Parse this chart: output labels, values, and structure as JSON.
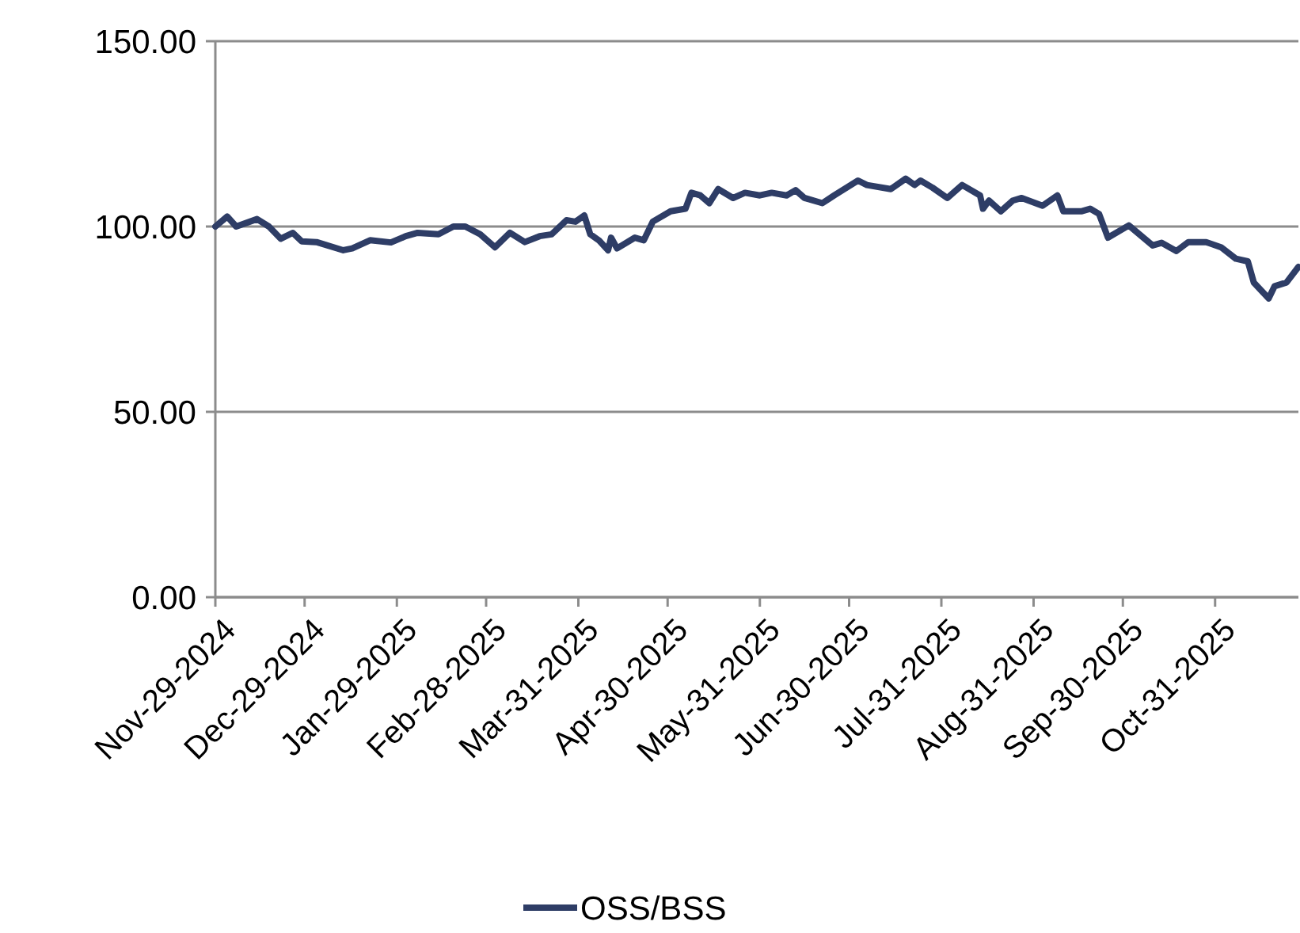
{
  "chart_data": {
    "type": "line",
    "x": [
      "2024-11-29",
      "2024-12-03",
      "2024-12-06",
      "2024-12-13",
      "2024-12-17",
      "2024-12-21",
      "2024-12-25",
      "2024-12-28",
      "2025-01-02",
      "2025-01-11",
      "2025-01-14",
      "2025-01-20",
      "2025-01-27",
      "2025-02-01",
      "2025-02-05",
      "2025-02-12",
      "2025-02-17",
      "2025-02-21",
      "2025-02-26",
      "2025-03-03",
      "2025-03-08",
      "2025-03-13",
      "2025-03-18",
      "2025-03-22",
      "2025-03-27",
      "2025-03-30",
      "2025-04-02",
      "2025-04-04",
      "2025-04-07",
      "2025-04-10",
      "2025-04-11",
      "2025-04-13",
      "2025-04-19",
      "2025-04-22",
      "2025-04-25",
      "2025-05-01",
      "2025-05-06",
      "2025-05-08",
      "2025-05-11",
      "2025-05-14",
      "2025-05-17",
      "2025-05-22",
      "2025-05-26",
      "2025-05-31",
      "2025-06-04",
      "2025-06-09",
      "2025-06-12",
      "2025-06-15",
      "2025-06-21",
      "2025-06-25",
      "2025-07-03",
      "2025-07-06",
      "2025-07-14",
      "2025-07-19",
      "2025-07-22",
      "2025-07-24",
      "2025-07-28",
      "2025-08-02",
      "2025-08-07",
      "2025-08-13",
      "2025-08-14",
      "2025-08-16",
      "2025-08-20",
      "2025-08-24",
      "2025-08-27",
      "2025-09-03",
      "2025-09-08",
      "2025-09-10",
      "2025-09-16",
      "2025-09-19",
      "2025-09-22",
      "2025-09-25",
      "2025-10-02",
      "2025-10-10",
      "2025-10-13",
      "2025-10-18",
      "2025-10-22",
      "2025-10-28",
      "2025-11-02",
      "2025-11-07",
      "2025-11-11",
      "2025-11-13",
      "2025-11-18",
      "2025-11-20",
      "2025-11-24",
      "2025-11-28"
    ],
    "series": [
      {
        "name": "OSS/BSS",
        "color": "#2e3d66",
        "values": [
          100,
          102.7,
          100,
          102,
          100,
          96.7,
          98.3,
          96,
          95.8,
          93.6,
          94.1,
          96.3,
          95.7,
          97.4,
          98.3,
          97.9,
          100,
          100,
          97.9,
          94.4,
          98.3,
          95.8,
          97.4,
          97.9,
          101.7,
          101.3,
          103,
          97.9,
          96.2,
          93.6,
          97,
          94.1,
          97,
          96.3,
          101.3,
          104.1,
          104.8,
          109.1,
          108.4,
          106.3,
          110.1,
          107.7,
          109.1,
          108.4,
          109.1,
          108.4,
          109.8,
          107.7,
          106.3,
          108.4,
          112.4,
          111.2,
          110.1,
          112.9,
          111.2,
          112.4,
          110.5,
          107.7,
          111.2,
          108.4,
          104.8,
          107,
          104.1,
          107,
          107.7,
          105.6,
          108.4,
          104.1,
          104.1,
          104.8,
          103.4,
          97,
          100.3,
          94.9,
          95.6,
          93.4,
          95.8,
          95.8,
          94.4,
          91.3,
          90.6,
          84.9,
          80.6,
          83.9,
          84.9,
          89.1
        ]
      }
    ],
    "xlim": [
      "2024-11-29",
      "2025-11-28"
    ],
    "xticks": [
      {
        "value": "2024-11-29",
        "label": "Nov-29-2024"
      },
      {
        "value": "2024-12-29",
        "label": "Dec-29-2024"
      },
      {
        "value": "2025-01-29",
        "label": "Jan-29-2025"
      },
      {
        "value": "2025-02-28",
        "label": "Feb-28-2025"
      },
      {
        "value": "2025-03-31",
        "label": "Mar-31-2025"
      },
      {
        "value": "2025-04-30",
        "label": "Apr-30-2025"
      },
      {
        "value": "2025-05-31",
        "label": "May-31-2025"
      },
      {
        "value": "2025-06-30",
        "label": "Jun-30-2025"
      },
      {
        "value": "2025-07-31",
        "label": "Jul-31-2025"
      },
      {
        "value": "2025-08-31",
        "label": "Aug-31-2025"
      },
      {
        "value": "2025-09-30",
        "label": "Sep-30-2025"
      },
      {
        "value": "2025-10-31",
        "label": "Oct-31-2025"
      }
    ],
    "ylim": [
      0,
      150
    ],
    "yticks": [
      {
        "value": 0,
        "label": "0.00"
      },
      {
        "value": 50,
        "label": "50.00"
      },
      {
        "value": 100,
        "label": "100.00"
      },
      {
        "value": 150,
        "label": "150.00"
      }
    ],
    "grid": "y",
    "legend": "bottom",
    "marker": "none",
    "line_style": "solid"
  }
}
